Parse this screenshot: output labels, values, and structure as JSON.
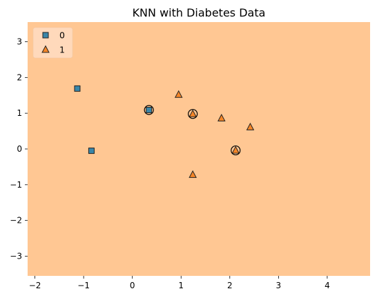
{
  "chart_data": {
    "type": "scatter",
    "title": "KNN with Diabetes Data",
    "xlabel": "",
    "ylabel": "",
    "xlim": [
      -2.15,
      4.88
    ],
    "ylim": [
      -3.55,
      3.55
    ],
    "xticks": [
      -2,
      -1,
      0,
      1,
      2,
      3,
      4
    ],
    "yticks": [
      -3,
      -2,
      -1,
      0,
      1,
      2,
      3
    ],
    "grid": false,
    "legend_position": "top-left",
    "background_region": {
      "class": "1",
      "color": "#ffc793"
    },
    "series": [
      {
        "name": "0",
        "marker": "square",
        "color": "#3a86a8",
        "points": [
          {
            "x": -1.13,
            "y": 1.69
          },
          {
            "x": 0.34,
            "y": 1.09
          },
          {
            "x": -0.84,
            "y": -0.05
          }
        ]
      },
      {
        "name": "1",
        "marker": "triangle",
        "color": "#f58527",
        "points": [
          {
            "x": 0.95,
            "y": 1.52
          },
          {
            "x": 1.24,
            "y": 0.98
          },
          {
            "x": 1.83,
            "y": 0.86
          },
          {
            "x": 2.42,
            "y": 0.61
          },
          {
            "x": 2.12,
            "y": -0.04
          },
          {
            "x": 1.24,
            "y": -0.72
          }
        ]
      }
    ],
    "highlighted_points": [
      {
        "x": 0.34,
        "y": 1.09
      },
      {
        "x": 1.24,
        "y": 0.98
      },
      {
        "x": 2.12,
        "y": -0.04
      }
    ]
  }
}
